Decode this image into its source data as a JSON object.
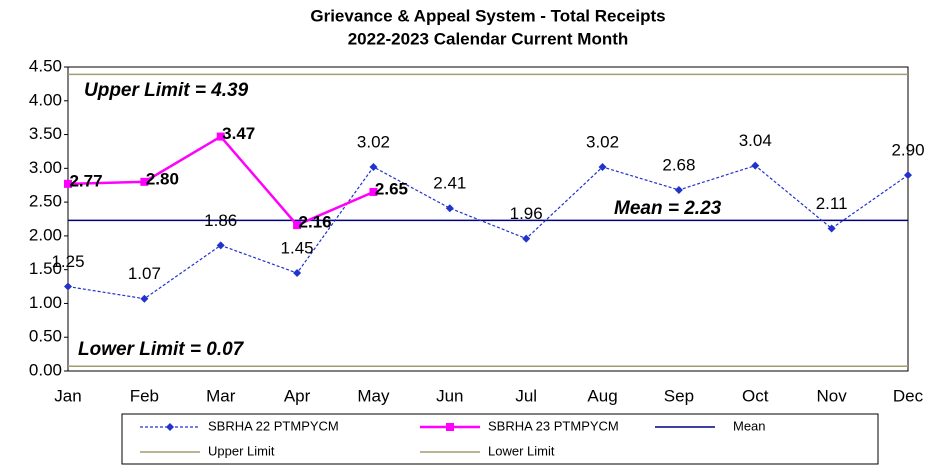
{
  "chart_data": {
    "type": "line",
    "title": "Grievance & Appeal System - Total Receipts",
    "subtitle": "2022-2023 Calendar Current Month",
    "categories": [
      "Jan",
      "Feb",
      "Mar",
      "Apr",
      "May",
      "Jun",
      "Jul",
      "Aug",
      "Sep",
      "Oct",
      "Nov",
      "Dec"
    ],
    "series": [
      {
        "name": "SBRHA 22 PTMPYCM",
        "color": "#2233cc",
        "dashed": true,
        "marker": "diamond",
        "values": [
          1.25,
          1.07,
          1.86,
          1.45,
          3.02,
          2.41,
          1.96,
          3.02,
          2.68,
          3.04,
          2.11,
          2.9
        ],
        "value_labels": [
          "1.25",
          "1.07",
          "1.86",
          "1.45",
          "3.02",
          "2.41",
          "1.96",
          "3.02",
          "2.68",
          "3.04",
          "2.11",
          "2.90"
        ]
      },
      {
        "name": "SBRHA 23 PTMPYCM",
        "color": "#ff00ff",
        "dashed": false,
        "marker": "square",
        "values": [
          2.77,
          2.8,
          3.47,
          2.16,
          2.65,
          null,
          null,
          null,
          null,
          null,
          null,
          null
        ],
        "value_labels": [
          "2.77",
          "2.80",
          "3.47",
          "2.16",
          "2.65",
          null,
          null,
          null,
          null,
          null,
          null,
          null
        ]
      }
    ],
    "reference_lines": [
      {
        "name": "Mean",
        "value": 2.23,
        "color": "#000080"
      },
      {
        "name": "Upper Limit",
        "value": 4.39,
        "color": "#a39c6e"
      },
      {
        "name": "Lower Limit",
        "value": 0.07,
        "color": "#a39c6e"
      }
    ],
    "annotations": [
      "Upper Limit = 4.39",
      "Mean = 2.23",
      "Lower Limit = 0.07"
    ],
    "ylim": [
      0,
      4.5
    ],
    "yticks": [
      {
        "value": 0,
        "label": "0.00"
      },
      {
        "value": 0.5,
        "label": "0.50"
      },
      {
        "value": 1,
        "label": "1.00"
      },
      {
        "value": 1.5,
        "label": "1.50"
      },
      {
        "value": 2,
        "label": "2.00"
      },
      {
        "value": 2.5,
        "label": "2.50"
      },
      {
        "value": 3,
        "label": "3.00"
      },
      {
        "value": 3.5,
        "label": "3.50"
      },
      {
        "value": 4,
        "label": "4.00"
      },
      {
        "value": 4.5,
        "label": "4.50"
      }
    ]
  }
}
